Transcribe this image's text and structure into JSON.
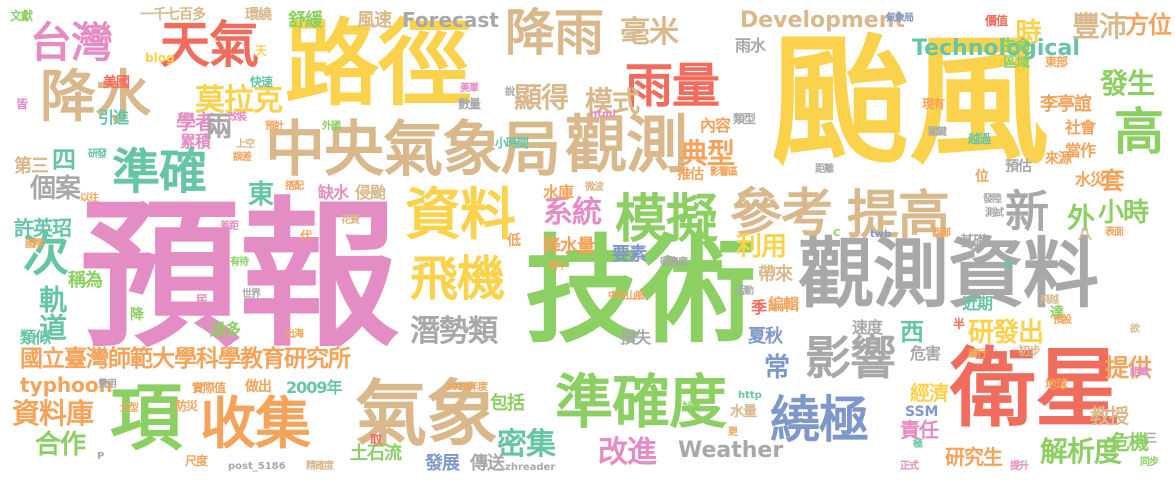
{
  "palette": {
    "yellow": "#fbd24b",
    "pink": "#e48cc4",
    "green": "#8ccf62",
    "tan": "#d9b98b",
    "gray": "#a8a8a8",
    "orange": "#f3a45a",
    "blue": "#7f97c9",
    "teal": "#66c5a6",
    "red": "#f06c5c"
  },
  "words": [
    {
      "text": "颱風",
      "color": "yellow"
    },
    {
      "text": "預報",
      "color": "pink"
    },
    {
      "text": "技術",
      "color": "green"
    },
    {
      "text": "路徑",
      "color": "yellow"
    },
    {
      "text": "觀測資料",
      "color": "gray"
    },
    {
      "text": "中央氣象局",
      "color": "tan"
    },
    {
      "text": "觀測",
      "color": "tan"
    },
    {
      "text": "衛星",
      "color": "red"
    },
    {
      "text": "準確度",
      "color": "green"
    },
    {
      "text": "氣象",
      "color": "tan"
    },
    {
      "text": "收集",
      "color": "orange"
    },
    {
      "text": "項",
      "color": "green"
    },
    {
      "text": "資料",
      "color": "yellow"
    },
    {
      "text": "模擬",
      "color": "green"
    },
    {
      "text": "參考",
      "color": "tan"
    },
    {
      "text": "提高",
      "color": "tan"
    },
    {
      "text": "降水",
      "color": "tan"
    },
    {
      "text": "準確",
      "color": "teal"
    },
    {
      "text": "天氣",
      "color": "red"
    },
    {
      "text": "台灣",
      "color": "pink"
    },
    {
      "text": "降雨",
      "color": "tan"
    },
    {
      "text": "雨量",
      "color": "red"
    },
    {
      "text": "飛機",
      "color": "yellow"
    },
    {
      "text": "影響",
      "color": "gray"
    },
    {
      "text": "繞極",
      "color": "blue"
    },
    {
      "text": "高",
      "color": "green"
    },
    {
      "text": "新",
      "color": "gray"
    },
    {
      "text": "次",
      "color": "teal"
    },
    {
      "text": "國立臺灣師範大學科學教育研究所",
      "color": "orange"
    },
    {
      "text": "莫拉克",
      "color": "yellow"
    },
    {
      "text": "毫米",
      "color": "tan"
    },
    {
      "text": "Development",
      "color": "tan"
    },
    {
      "text": "Technological",
      "color": "teal"
    },
    {
      "text": "豐沛",
      "color": "tan"
    },
    {
      "text": "方位",
      "color": "orange"
    },
    {
      "text": "發生",
      "color": "green"
    },
    {
      "text": "系統",
      "color": "pink"
    },
    {
      "text": "顯得",
      "color": "tan"
    },
    {
      "text": "模式",
      "color": "tan"
    },
    {
      "text": "潛勢類",
      "color": "gray"
    },
    {
      "text": "典型",
      "color": "orange"
    },
    {
      "text": "時",
      "color": "yellow"
    },
    {
      "text": "外",
      "color": "green"
    },
    {
      "text": "小時",
      "color": "green"
    },
    {
      "text": "套",
      "color": "orange"
    },
    {
      "text": "利用",
      "color": "yellow"
    },
    {
      "text": "軌道",
      "color": "teal"
    },
    {
      "text": "許英玿",
      "color": "teal"
    },
    {
      "text": "資料庫",
      "color": "orange"
    },
    {
      "text": "合作",
      "color": "green"
    },
    {
      "text": "密集",
      "color": "teal"
    },
    {
      "text": "改進",
      "color": "pink"
    },
    {
      "text": "Weather",
      "color": "gray"
    },
    {
      "text": "解析度",
      "color": "green"
    },
    {
      "text": "研究生",
      "color": "orange"
    },
    {
      "text": "教授",
      "color": "tan"
    },
    {
      "text": "危機",
      "color": "green"
    },
    {
      "text": "責任",
      "color": "pink"
    },
    {
      "text": "經濟",
      "color": "yellow"
    },
    {
      "text": "提供",
      "color": "orange"
    },
    {
      "text": "研發出",
      "color": "yellow"
    },
    {
      "text": "東",
      "color": "teal"
    },
    {
      "text": "四",
      "color": "teal"
    },
    {
      "text": "個案",
      "color": "gray"
    },
    {
      "text": "第三",
      "color": "tan"
    },
    {
      "text": "學者",
      "color": "pink"
    },
    {
      "text": "累積",
      "color": "pink"
    },
    {
      "text": "兩",
      "color": "gray"
    },
    {
      "text": "美國",
      "color": "red"
    },
    {
      "text": "引進",
      "color": "teal"
    },
    {
      "text": "一千七百多",
      "color": "tan"
    },
    {
      "text": "環繞",
      "color": "tan"
    },
    {
      "text": "舒緩",
      "color": "green"
    },
    {
      "text": "風速",
      "color": "tan"
    },
    {
      "text": "Forecast",
      "color": "gray"
    },
    {
      "text": "雨水",
      "color": "gray"
    },
    {
      "text": "水庫",
      "color": "orange"
    },
    {
      "text": "降水量",
      "color": "orange"
    },
    {
      "text": "要素",
      "color": "blue"
    },
    {
      "text": "帶來",
      "color": "tan"
    },
    {
      "text": "常",
      "color": "blue"
    },
    {
      "text": "編輯",
      "color": "orange"
    },
    {
      "text": "夏秋",
      "color": "blue"
    },
    {
      "text": "速度",
      "color": "gray"
    },
    {
      "text": "西",
      "color": "teal"
    },
    {
      "text": "過多",
      "color": "green"
    },
    {
      "text": "類似",
      "color": "teal"
    },
    {
      "text": "稱為",
      "color": "green"
    },
    {
      "text": "typhoon",
      "color": "orange"
    },
    {
      "text": "2009年",
      "color": "teal"
    },
    {
      "text": "包括",
      "color": "green"
    },
    {
      "text": "傳送",
      "color": "gray"
    },
    {
      "text": "發展",
      "color": "blue"
    },
    {
      "text": "土石流",
      "color": "green"
    },
    {
      "text": "缺水",
      "color": "pink"
    },
    {
      "text": "侵颱",
      "color": "tan"
    },
    {
      "text": "內容",
      "color": "orange"
    },
    {
      "text": "推估",
      "color": "orange"
    },
    {
      "text": "李亭誼",
      "color": "orange"
    },
    {
      "text": "社會",
      "color": "orange"
    },
    {
      "text": "當作",
      "color": "orange"
    },
    {
      "text": "生命",
      "color": "green"
    },
    {
      "text": "區域",
      "color": "green"
    },
    {
      "text": "水災",
      "color": "orange"
    },
    {
      "text": "近期",
      "color": "teal"
    },
    {
      "text": "SSM",
      "color": "blue"
    },
    {
      "text": "水量",
      "color": "tan"
    },
    {
      "text": "季",
      "color": "red"
    },
    {
      "text": "損失",
      "color": "gray"
    },
    {
      "text": "危害",
      "color": "gray"
    },
    {
      "text": "基礎",
      "color": "gray"
    },
    {
      "text": "預估",
      "color": "gray"
    },
    {
      "text": "來源",
      "color": "orange"
    },
    {
      "text": "越過",
      "color": "teal"
    },
    {
      "text": "現有",
      "color": "orange"
    },
    {
      "text": "東部",
      "color": "orange"
    },
    {
      "text": "價值",
      "color": "red"
    },
    {
      "text": "氣象局",
      "color": "blue"
    },
    {
      "text": "文獻",
      "color": "green"
    },
    {
      "text": "blog",
      "color": "yellow"
    },
    {
      "text": "天",
      "color": "yellow"
    },
    {
      "text": "快速",
      "color": "teal"
    },
    {
      "text": "說",
      "color": "gray"
    },
    {
      "text": "美軍",
      "color": "pink"
    },
    {
      "text": "數量",
      "color": "gray"
    },
    {
      "text": "html",
      "color": "pink"
    },
    {
      "text": "小時間",
      "color": "teal"
    },
    {
      "text": "類型",
      "color": "gray"
    },
    {
      "text": "預計",
      "color": "orange"
    },
    {
      "text": "外國",
      "color": "green"
    },
    {
      "text": "改裝",
      "color": "pink"
    },
    {
      "text": "上空",
      "color": "tan"
    },
    {
      "text": "誤差",
      "color": "orange"
    },
    {
      "text": "研發",
      "color": "teal"
    },
    {
      "text": "以往",
      "color": "orange"
    },
    {
      "text": "搭配",
      "color": "orange"
    },
    {
      "text": "微波",
      "color": "tan"
    },
    {
      "text": "影響區",
      "color": "orange"
    },
    {
      "text": "距離",
      "color": "gray"
    },
    {
      "text": "位",
      "color": "orange"
    },
    {
      "text": "發陸",
      "color": "gray"
    },
    {
      "text": "測試",
      "color": "gray"
    },
    {
      "text": "西部",
      "color": "orange"
    },
    {
      "text": "八",
      "color": "tan"
    },
    {
      "text": "表面",
      "color": "orange"
    },
    {
      "text": "作",
      "color": "teal"
    },
    {
      "text": "飛越",
      "color": "tan"
    },
    {
      "text": "達",
      "color": "green"
    },
    {
      "text": "欲",
      "color": "tan"
    },
    {
      "text": "初步",
      "color": "tan"
    },
    {
      "text": "續行",
      "color": "orange"
    },
    {
      "text": "半",
      "color": "red"
    },
    {
      "text": "地球",
      "color": "orange"
    },
    {
      "text": "同步",
      "color": "green"
    },
    {
      "text": "提升",
      "color": "pink"
    },
    {
      "text": "正式",
      "color": "pink"
    },
    {
      "text": "極",
      "color": "teal"
    },
    {
      "text": "更",
      "color": "orange"
    },
    {
      "text": "http",
      "color": "teal"
    },
    {
      "text": "計畫",
      "color": "green"
    },
    {
      "text": "2010年度",
      "color": "orange"
    },
    {
      "text": "zhreader",
      "color": "gray"
    },
    {
      "text": "中央山脈",
      "color": "orange"
    },
    {
      "text": "兩千",
      "color": "orange"
    },
    {
      "text": "密集度",
      "color": "gray"
    },
    {
      "text": "活動",
      "color": "gray"
    },
    {
      "text": "低",
      "color": "orange"
    },
    {
      "text": "花費",
      "color": "tan"
    },
    {
      "text": "差距",
      "color": "pink"
    },
    {
      "text": "國際",
      "color": "orange"
    },
    {
      "text": "有待",
      "color": "green"
    },
    {
      "text": "世界",
      "color": "gray"
    },
    {
      "text": "出海",
      "color": "orange"
    },
    {
      "text": "實際值",
      "color": "orange"
    },
    {
      "text": "做出",
      "color": "orange"
    },
    {
      "text": "費用",
      "color": "gray"
    },
    {
      "text": "防災",
      "color": "orange"
    },
    {
      "text": "尺度",
      "color": "orange"
    },
    {
      "text": "post_5186",
      "color": "gray"
    },
    {
      "text": "精確度",
      "color": "tan"
    },
    {
      "text": "大型",
      "color": "orange"
    },
    {
      "text": "皆",
      "color": "pink"
    },
    {
      "text": "代",
      "color": "orange"
    },
    {
      "text": "民",
      "color": "pink"
    },
    {
      "text": "降",
      "color": "green"
    },
    {
      "text": "取",
      "color": "red"
    },
    {
      "text": "twb",
      "color": "blue"
    },
    {
      "text": "C",
      "color": "green"
    },
    {
      "text": "P",
      "color": "gray"
    },
    {
      "text": "三",
      "color": "gray"
    },
    {
      "text": "組織",
      "color": "pink"
    },
    {
      "text": "預設",
      "color": "orange"
    },
    {
      "text": "關鍵",
      "color": "gray"
    }
  ]
}
